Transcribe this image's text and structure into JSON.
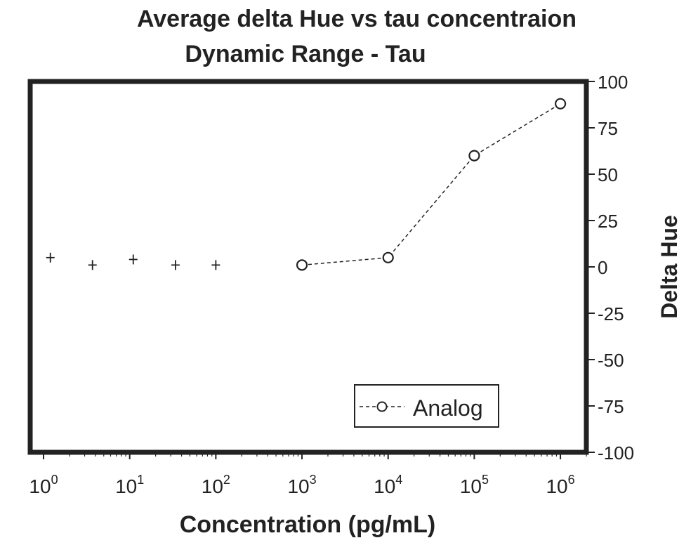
{
  "chart_data": {
    "type": "scatter",
    "title": "Average delta Hue vs tau concentraion",
    "subtitle": "Dynamic Range - Tau",
    "xlabel": "Concentration (pg/mL)",
    "ylabel": "Delta Hue",
    "xscale": "log",
    "xlim": [
      0.7,
      2000000
    ],
    "ylim": [
      -100,
      100
    ],
    "x_ticks": [
      {
        "value": 1,
        "base": "10",
        "exp": "0"
      },
      {
        "value": 10,
        "base": "10",
        "exp": "1"
      },
      {
        "value": 100,
        "base": "10",
        "exp": "2"
      },
      {
        "value": 1000,
        "base": "10",
        "exp": "3"
      },
      {
        "value": 10000,
        "base": "10",
        "exp": "4"
      },
      {
        "value": 100000,
        "base": "10",
        "exp": "5"
      },
      {
        "value": 1000000,
        "base": "10",
        "exp": "6"
      }
    ],
    "y_ticks": [
      {
        "value": 100,
        "label": "100"
      },
      {
        "value": 75,
        "label": "75"
      },
      {
        "value": 50,
        "label": "50"
      },
      {
        "value": 25,
        "label": "25"
      },
      {
        "value": 0,
        "label": "0"
      },
      {
        "value": -25,
        "label": "-25"
      },
      {
        "value": -50,
        "label": "-50"
      },
      {
        "value": -75,
        "label": "-75"
      },
      {
        "value": -100,
        "label": "-100"
      }
    ],
    "y_axis_side": "right",
    "grid": false,
    "legend_position": "bottom-right",
    "series": [
      {
        "marker": "plus",
        "line": "none",
        "x": [
          1.2,
          3.7,
          11,
          34,
          100
        ],
        "y": [
          5,
          1,
          4,
          1,
          1
        ]
      },
      {
        "name": "Analog",
        "marker": "circle-open",
        "line": "dashed",
        "x": [
          1000,
          10000,
          100000,
          1000000
        ],
        "y": [
          1,
          5,
          60,
          88
        ]
      }
    ]
  }
}
